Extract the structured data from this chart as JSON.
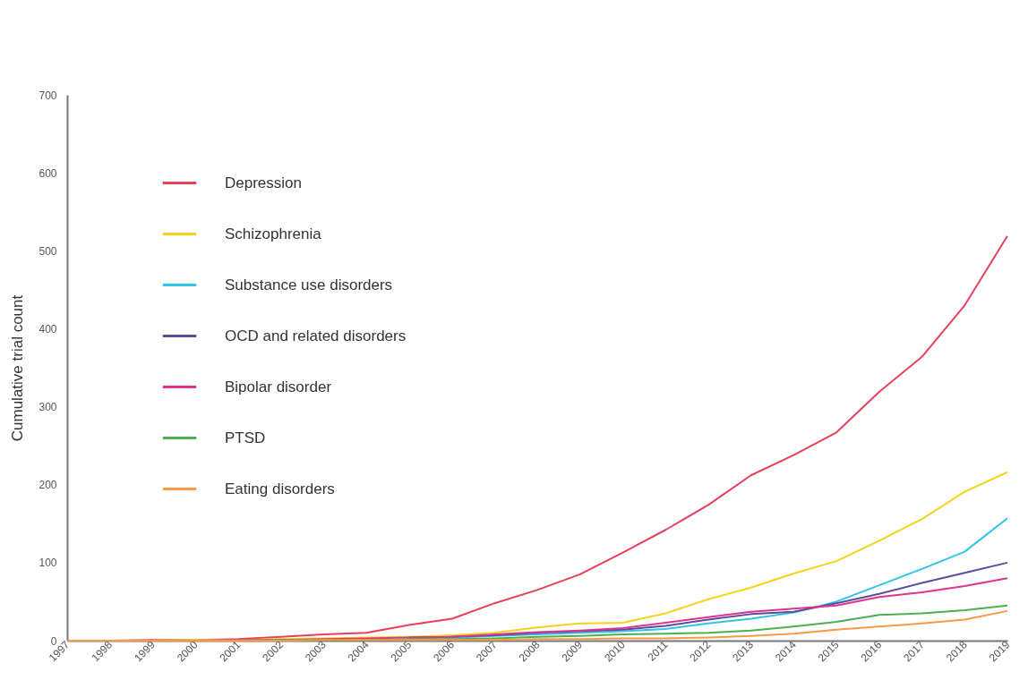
{
  "chart_data": {
    "type": "line",
    "ylabel": "Cumulative trial count",
    "categories": [
      "1997",
      "1998",
      "1999",
      "2000",
      "2001",
      "2002",
      "2003",
      "2004",
      "2005",
      "2006",
      "2007",
      "2008",
      "2009",
      "2010",
      "2011",
      "2012",
      "2013",
      "2014",
      "2015",
      "2016",
      "2017",
      "2018",
      "2019"
    ],
    "ylim": [
      0,
      700
    ],
    "yticks": [
      0,
      100,
      200,
      300,
      400,
      500,
      600,
      700
    ],
    "grid": false,
    "legend": "top left",
    "marker": "none",
    "line_style": "solid",
    "series": [
      {
        "name": "Depression",
        "color": "#e8405a",
        "values": [
          0,
          0,
          1,
          1,
          2,
          5,
          8,
          10,
          20,
          28,
          48,
          65,
          85,
          113,
          142,
          174,
          212,
          238,
          267,
          319,
          364,
          430,
          519
        ]
      },
      {
        "name": "Schizophrenia",
        "color": "#f2d41c",
        "values": [
          null,
          null,
          0,
          1,
          1,
          2,
          3,
          4,
          5,
          7,
          10,
          17,
          22,
          23,
          35,
          53,
          68,
          86,
          102,
          128,
          156,
          191,
          216
        ]
      },
      {
        "name": "Substance use disorders",
        "color": "#2ec4e8",
        "values": [
          null,
          null,
          null,
          null,
          null,
          null,
          null,
          null,
          3,
          4,
          6,
          8,
          10,
          12,
          15,
          22,
          28,
          36,
          50,
          71,
          92,
          114,
          157
        ]
      },
      {
        "name": "OCD and related disorders",
        "color": "#5b4c9e",
        "values": [
          null,
          null,
          null,
          null,
          null,
          null,
          null,
          null,
          4,
          5,
          7,
          10,
          12,
          14,
          19,
          27,
          34,
          37,
          48,
          60,
          74,
          87,
          100
        ]
      },
      {
        "name": "Bipolar disorder",
        "color": "#e0338f",
        "values": [
          0,
          0,
          0,
          0,
          1,
          1,
          2,
          3,
          4,
          5,
          8,
          11,
          13,
          16,
          23,
          30,
          37,
          41,
          45,
          56,
          62,
          70,
          80
        ]
      },
      {
        "name": "PTSD",
        "color": "#4cb050",
        "values": [
          null,
          null,
          null,
          null,
          0,
          1,
          1,
          1,
          2,
          2,
          3,
          5,
          6,
          8,
          9,
          10,
          13,
          18,
          24,
          33,
          35,
          39,
          45
        ]
      },
      {
        "name": "Eating disorders",
        "color": "#f59a45",
        "values": [
          0,
          0,
          0,
          0,
          0,
          0,
          1,
          1,
          1,
          1,
          1,
          2,
          2,
          3,
          3,
          4,
          6,
          9,
          14,
          18,
          22,
          27,
          38
        ]
      }
    ]
  }
}
